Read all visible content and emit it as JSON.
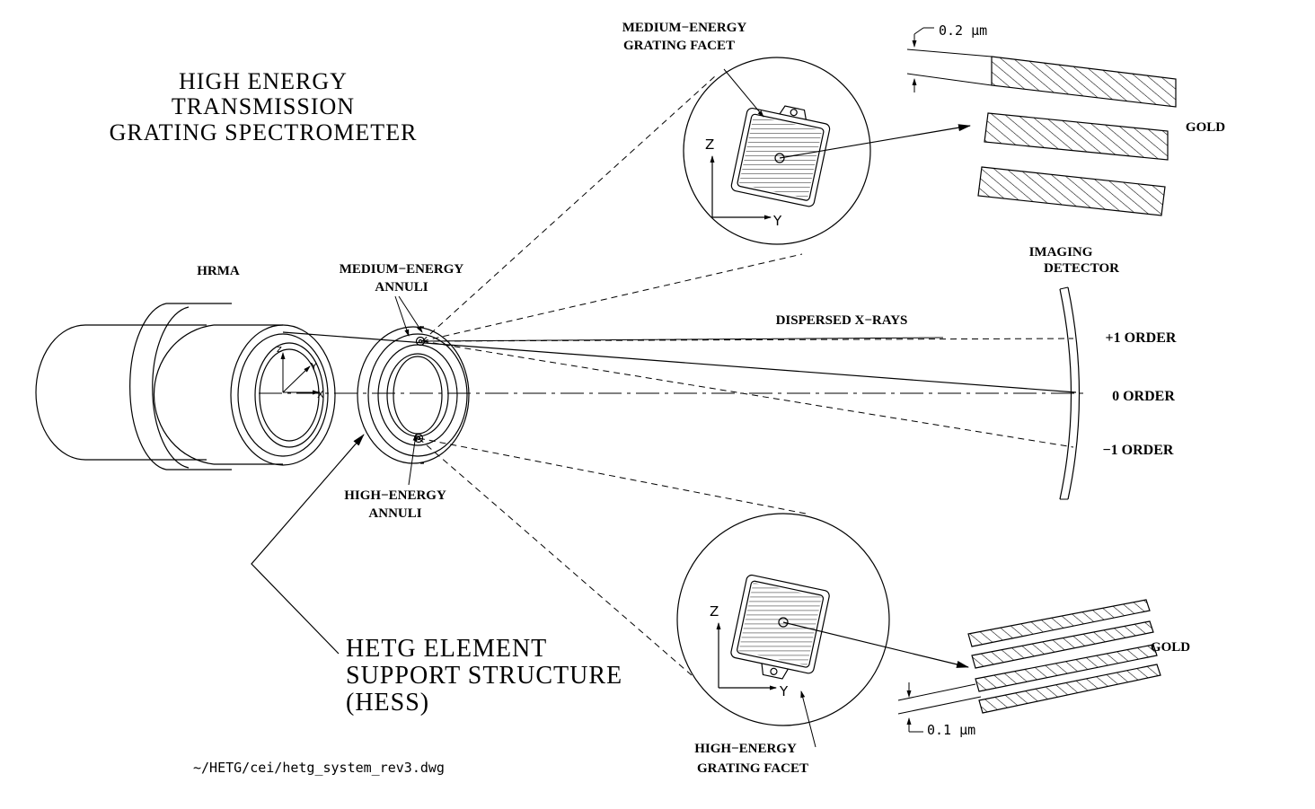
{
  "title": {
    "line1": "HIGH  ENERGY",
    "line2": "TRANSMISSION",
    "line3": "GRATING  SPECTROMETER"
  },
  "labels": {
    "hrma": "HRMA",
    "medium_annuli_1": "MEDIUM−ENERGY",
    "medium_annuli_2": "ANNULI",
    "high_annuli_1": "HIGH−ENERGY",
    "high_annuli_2": "ANNULI",
    "medium_facet_1": "MEDIUM−ENERGY",
    "medium_facet_2": "GRATING  FACET",
    "high_facet_1": "HIGH−ENERGY",
    "high_facet_2": "GRATING  FACET",
    "gold_top": "GOLD",
    "gold_bottom": "GOLD",
    "period_top": "0.2  μm",
    "period_bottom": "0.1  μm",
    "detector_1": "IMAGING",
    "detector_2": "DETECTOR",
    "dispersed": "DISPERSED  X−RAYS",
    "order_plus1": "+1  ORDER",
    "order_zero": "0  ORDER",
    "order_minus1": "−1  ORDER",
    "hess_1": "HETG  ELEMENT",
    "hess_2": "SUPPORT  STRUCTURE",
    "hess_3": "(HESS)",
    "file_path": "~/HETG/cei/hetg_system_rev3.dwg"
  },
  "axes": {
    "z": "Z",
    "y": "Y",
    "x": "X",
    "small_z": "z",
    "small_y": "Y"
  }
}
